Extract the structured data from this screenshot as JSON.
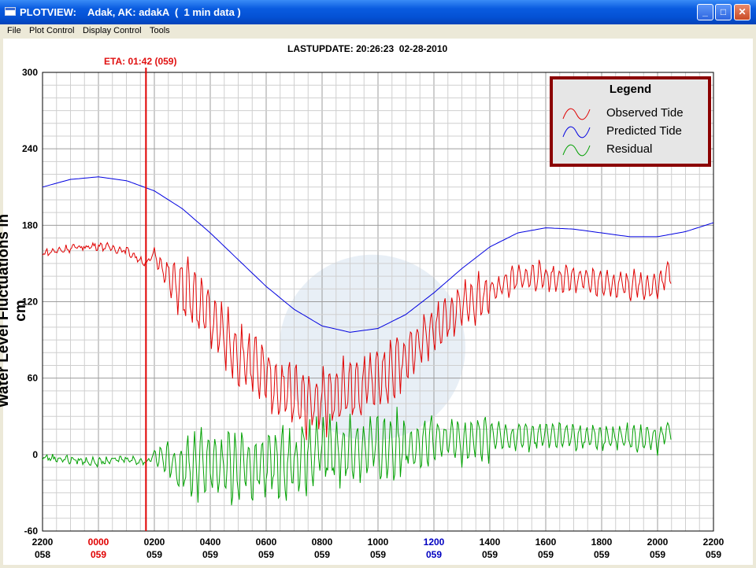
{
  "window": {
    "title": "PLOTVIEW:    Adak, AK: adakA  (  1 min data )",
    "minimize_glyph": "_",
    "maximize_glyph": "□",
    "close_glyph": "✕"
  },
  "menu": [
    "File",
    "Plot Control",
    "Display Control",
    "Tools"
  ],
  "header": {
    "lastupdate": "LASTUPDATE: 20:26:23  02-28-2010",
    "eta": "ETA: 01:42 (059)"
  },
  "legend": {
    "title": "Legend",
    "items": [
      {
        "label": "Observed Tide",
        "color": "#e00000"
      },
      {
        "label": "Predicted Tide",
        "color": "#0000e0"
      },
      {
        "label": "Residual",
        "color": "#00a000"
      }
    ]
  },
  "chart_data": {
    "type": "line",
    "ylabel": "Water Level Fluctuations in cm",
    "ylim": [
      -60,
      300
    ],
    "yticks": [
      -60,
      0,
      60,
      120,
      180,
      240,
      300
    ],
    "x_unit": "hours relative to 0000 day 059",
    "xlim": [
      -2,
      22
    ],
    "xticks": [
      {
        "hour": -2,
        "time": "2200",
        "day": "058",
        "color": "#000000"
      },
      {
        "hour": 0,
        "time": "0000",
        "day": "059",
        "color": "#e00000"
      },
      {
        "hour": 2,
        "time": "0200",
        "day": "059",
        "color": "#000000"
      },
      {
        "hour": 4,
        "time": "0400",
        "day": "059",
        "color": "#000000"
      },
      {
        "hour": 6,
        "time": "0600",
        "day": "059",
        "color": "#000000"
      },
      {
        "hour": 8,
        "time": "0800",
        "day": "059",
        "color": "#000000"
      },
      {
        "hour": 10,
        "time": "1000",
        "day": "059",
        "color": "#000000"
      },
      {
        "hour": 12,
        "time": "1200",
        "day": "059",
        "color": "#0000c0"
      },
      {
        "hour": 14,
        "time": "1400",
        "day": "059",
        "color": "#000000"
      },
      {
        "hour": 16,
        "time": "1600",
        "day": "059",
        "color": "#000000"
      },
      {
        "hour": 18,
        "time": "1800",
        "day": "059",
        "color": "#000000"
      },
      {
        "hour": 20,
        "time": "2000",
        "day": "059",
        "color": "#000000"
      },
      {
        "hour": 22,
        "time": "2200",
        "day": "059",
        "color": "#000000"
      }
    ],
    "grid": true,
    "legend_position": "top-right",
    "eta_marker": {
      "hour": 1.7,
      "color": "#e00000"
    },
    "series": [
      {
        "name": "Predicted Tide",
        "color": "#0000e0",
        "x": [
          -2,
          -1,
          0,
          1,
          2,
          3,
          4,
          5,
          6,
          7,
          8,
          9,
          10,
          11,
          12,
          13,
          14,
          15,
          16,
          17,
          18,
          19,
          20,
          21,
          22
        ],
        "y": [
          210,
          216,
          218,
          215,
          207,
          193,
          174,
          153,
          132,
          114,
          101,
          96,
          99,
          110,
          127,
          146,
          163,
          174,
          178,
          177,
          174,
          171,
          171,
          175,
          182
        ]
      },
      {
        "name": "Observed Tide",
        "color": "#e00000",
        "x": [
          -2,
          -1,
          0,
          1,
          1.7,
          2,
          2.5,
          3,
          3.5,
          4,
          4.5,
          5,
          5.5,
          6,
          6.5,
          7,
          7.5,
          8,
          8.5,
          9,
          9.5,
          10,
          10.5,
          11,
          11.5,
          12,
          12.5,
          13,
          13.5,
          14,
          14.5,
          15,
          15.5,
          16,
          16.5,
          17,
          17.5,
          18,
          18.5,
          19,
          19.5,
          20,
          20.5
        ],
        "y": [
          158,
          162,
          164,
          160,
          150,
          158,
          138,
          130,
          120,
          108,
          92,
          80,
          70,
          60,
          52,
          46,
          42,
          44,
          46,
          50,
          54,
          60,
          68,
          78,
          88,
          98,
          106,
          114,
          120,
          128,
          134,
          138,
          140,
          140,
          138,
          137,
          136,
          135,
          134,
          133,
          133,
          132,
          145
        ]
      },
      {
        "name": "Residual",
        "color": "#00a000",
        "x": [
          -2,
          -1,
          0,
          1,
          1.7,
          2,
          3,
          4,
          5,
          6,
          7,
          8,
          9,
          10,
          11,
          12,
          13,
          14,
          15,
          16,
          17,
          18,
          19,
          20,
          20.5
        ],
        "y": [
          -2,
          -4,
          -6,
          -3,
          -6,
          0,
          -10,
          -5,
          -12,
          -8,
          -5,
          2,
          4,
          6,
          8,
          10,
          12,
          14,
          14,
          15,
          14,
          13,
          13,
          12,
          23
        ]
      }
    ]
  }
}
